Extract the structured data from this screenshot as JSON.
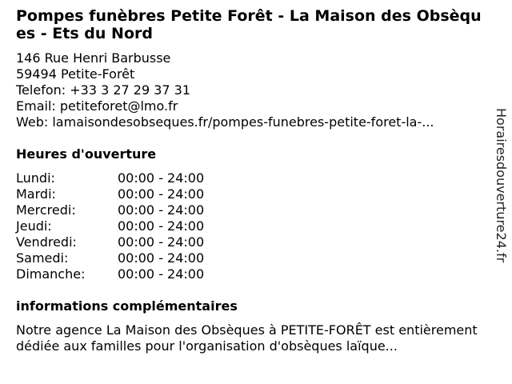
{
  "title": "Pompes funèbres Petite Forêt - La Maison des Obsèques - Ets du Nord",
  "address": {
    "street": "146 Rue Henri Barbusse",
    "city": "59494 Petite-Forêt",
    "phone": "Telefon: +33 3 27 29 37 31",
    "email": "Email: petiteforet@lmo.fr",
    "web": "Web: lamaisondesobseques.fr/pompes-funebres-petite-foret-la-..."
  },
  "hours_heading": "Heures d'ouverture",
  "hours": [
    {
      "day": "Lundi:",
      "time": "00:00 - 24:00"
    },
    {
      "day": "Mardi:",
      "time": "00:00 - 24:00"
    },
    {
      "day": "Mercredi:",
      "time": "00:00 - 24:00"
    },
    {
      "day": "Jeudi:",
      "time": "00:00 - 24:00"
    },
    {
      "day": "Vendredi:",
      "time": "00:00 - 24:00"
    },
    {
      "day": "Samedi:",
      "time": "00:00 - 24:00"
    },
    {
      "day": "Dimanche:",
      "time": "00:00 - 24:00"
    }
  ],
  "info_heading": "informations complémentaires",
  "info_text": "Notre agence La Maison des Obsèques à PETITE-FORÊT est entièrement dédiée aux familles pour l'organisation d'obsèques laïque...",
  "side_brand": "Horairesdouverture24.fr"
}
